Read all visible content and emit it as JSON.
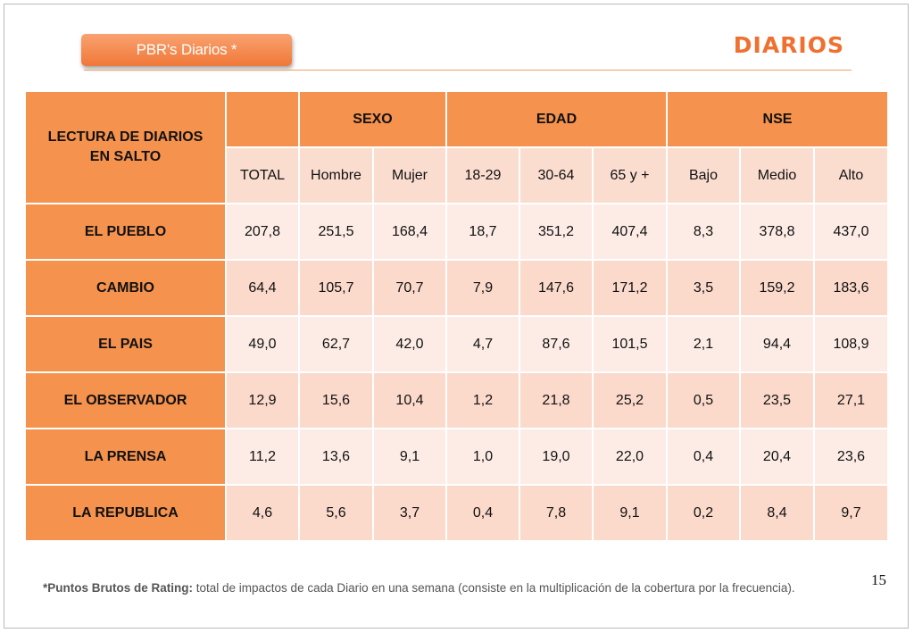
{
  "header": {
    "badge": "PBR's Diarios  *",
    "title": "DIARIOS"
  },
  "table": {
    "corner_line1": "LECTURA DE DIARIOS",
    "corner_line2": "EN SALTO",
    "groups": [
      "SEXO",
      "EDAD",
      "NSE"
    ],
    "columns": [
      "TOTAL",
      "Hombre",
      "Mujer",
      "18-29",
      "30-64",
      "65 y +",
      "Bajo",
      "Medio",
      "Alto"
    ],
    "rows": [
      {
        "label": "EL PUEBLO",
        "values": [
          "207,8",
          "251,5",
          "168,4",
          "18,7",
          "351,2",
          "407,4",
          "8,3",
          "378,8",
          "437,0"
        ]
      },
      {
        "label": "CAMBIO",
        "values": [
          "64,4",
          "105,7",
          "70,7",
          "7,9",
          "147,6",
          "171,2",
          "3,5",
          "159,2",
          "183,6"
        ]
      },
      {
        "label": "EL PAIS",
        "values": [
          "49,0",
          "62,7",
          "42,0",
          "4,7",
          "87,6",
          "101,5",
          "2,1",
          "94,4",
          "108,9"
        ]
      },
      {
        "label": "EL OBSERVADOR",
        "values": [
          "12,9",
          "15,6",
          "10,4",
          "1,2",
          "21,8",
          "25,2",
          "0,5",
          "23,5",
          "27,1"
        ]
      },
      {
        "label": "LA PRENSA",
        "values": [
          "11,2",
          "13,6",
          "9,1",
          "1,0",
          "19,0",
          "22,0",
          "0,4",
          "20,4",
          "23,6"
        ]
      },
      {
        "label": "LA REPUBLICA",
        "values": [
          "4,6",
          "5,6",
          "3,7",
          "0,4",
          "7,8",
          "9,1",
          "0,2",
          "8,4",
          "9,7"
        ]
      }
    ]
  },
  "footer": {
    "page_number": "15",
    "note_bold": "*Puntos Brutos de Rating:",
    "note_text": " total de impactos de cada Diario en una semana (consiste en la multiplicación de la cobertura por la frecuencia)."
  },
  "colors": {
    "accent": "#f5924d",
    "title": "#f07030",
    "cell_dark": "#fbd9cb",
    "cell_light": "#fdece6"
  }
}
